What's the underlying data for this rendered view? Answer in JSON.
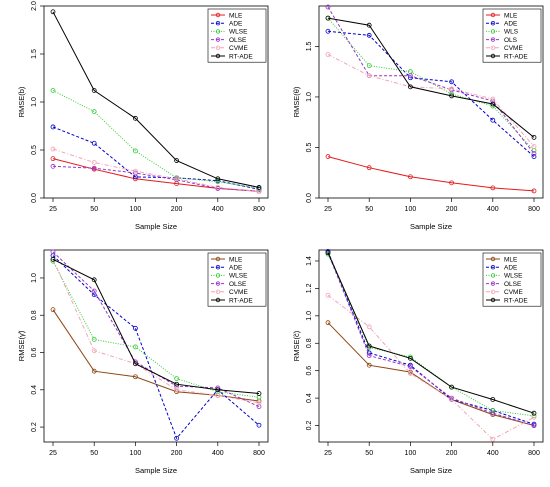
{
  "chart_data": [
    {
      "type": "line",
      "xlabel": "Sample Size",
      "ylabel": "RMSE(b)",
      "x": [
        "25",
        "50",
        "100",
        "200",
        "400",
        "800"
      ],
      "ylim": [
        0,
        2.0
      ],
      "yticks": [
        0.0,
        0.5,
        1.0,
        1.5,
        2.0
      ],
      "ytick_labels": [
        "0.0",
        "0.5",
        "1.0",
        "1.5",
        "2.0"
      ],
      "legend_position": "top-right",
      "series": [
        {
          "name": "MLE",
          "color": "#e41a1c",
          "dash": "solid",
          "values": [
            0.41,
            0.3,
            0.2,
            0.15,
            0.1,
            0.07
          ]
        },
        {
          "name": "ADE",
          "color": "#0000cd",
          "dash": "dashed",
          "values": [
            0.74,
            0.57,
            0.22,
            0.21,
            0.18,
            0.09
          ]
        },
        {
          "name": "WLSE",
          "color": "#33cc33",
          "dash": "dotted",
          "values": [
            1.12,
            0.9,
            0.49,
            0.21,
            0.17,
            0.1
          ]
        },
        {
          "name": "OLSE",
          "color": "#9933cc",
          "dash": "dashed",
          "values": [
            0.33,
            0.31,
            0.26,
            0.19,
            0.1,
            0.07
          ]
        },
        {
          "name": "CVME",
          "color": "#f4a3b4",
          "dash": "dotdash",
          "values": [
            0.51,
            0.37,
            0.28,
            0.2,
            0.11,
            0.07
          ]
        },
        {
          "name": "RT-ADE",
          "color": "#000000",
          "dash": "solid",
          "values": [
            1.94,
            1.12,
            0.83,
            0.39,
            0.2,
            0.11
          ]
        }
      ]
    },
    {
      "type": "line",
      "xlabel": "Sample Size",
      "ylabel": "RMSE(θ)",
      "x": [
        "25",
        "50",
        "100",
        "200",
        "400",
        "800"
      ],
      "ylim": [
        0,
        1.9
      ],
      "yticks": [
        0.0,
        0.5,
        1.0,
        1.5
      ],
      "ytick_labels": [
        "0.0",
        "0.5",
        "1.0",
        "1.5"
      ],
      "legend_position": "top-right",
      "series": [
        {
          "name": "MLE",
          "color": "#e41a1c",
          "dash": "solid",
          "values": [
            0.41,
            0.3,
            0.21,
            0.15,
            0.1,
            0.07
          ]
        },
        {
          "name": "ADE",
          "color": "#0000cd",
          "dash": "dashed",
          "values": [
            1.65,
            1.61,
            1.19,
            1.15,
            0.77,
            0.41
          ]
        },
        {
          "name": "WLS",
          "color": "#33cc33",
          "dash": "dotted",
          "values": [
            1.78,
            1.31,
            1.25,
            1.03,
            0.91,
            0.47
          ]
        },
        {
          "name": "OLS",
          "color": "#9933cc",
          "dash": "dashed",
          "values": [
            1.89,
            1.21,
            1.21,
            1.07,
            0.96,
            0.44
          ]
        },
        {
          "name": "CVME",
          "color": "#f4a3b4",
          "dash": "dotdash",
          "values": [
            1.42,
            1.21,
            1.1,
            1.08,
            0.98,
            0.51
          ]
        },
        {
          "name": "RT-ADE",
          "color": "#000000",
          "dash": "solid",
          "values": [
            1.78,
            1.71,
            1.1,
            1.01,
            0.93,
            0.6
          ]
        }
      ]
    },
    {
      "type": "line",
      "xlabel": "Sample Size",
      "ylabel": "RMSE(γ̃)",
      "x": [
        "25",
        "50",
        "100",
        "200",
        "400",
        "800"
      ],
      "ylim": [
        0.12,
        1.15
      ],
      "yticks": [
        0.2,
        0.4,
        0.6,
        0.8,
        1.0
      ],
      "ytick_labels": [
        "0.2",
        "0.4",
        "0.6",
        "0.8",
        "1.0"
      ],
      "legend_position": "top-right",
      "series": [
        {
          "name": "MLE",
          "color": "#8b4513",
          "dash": "solid",
          "values": [
            0.83,
            0.5,
            0.47,
            0.39,
            0.37,
            0.34
          ]
        },
        {
          "name": "ADE",
          "color": "#0000cd",
          "dash": "dashed",
          "values": [
            1.12,
            0.91,
            0.73,
            0.14,
            0.4,
            0.21
          ]
        },
        {
          "name": "WLSE",
          "color": "#33cc33",
          "dash": "dotted",
          "values": [
            1.09,
            0.67,
            0.63,
            0.46,
            0.39,
            0.36
          ]
        },
        {
          "name": "OLSE",
          "color": "#9933cc",
          "dash": "dashed",
          "values": [
            1.14,
            0.93,
            0.55,
            0.42,
            0.41,
            0.31
          ]
        },
        {
          "name": "CVME",
          "color": "#f4a3b4",
          "dash": "dotdash",
          "values": [
            1.1,
            0.61,
            0.54,
            0.4,
            0.37,
            0.33
          ]
        },
        {
          "name": "RT-ADE",
          "color": "#000000",
          "dash": "solid",
          "values": [
            1.1,
            0.99,
            0.54,
            0.43,
            0.4,
            0.38
          ]
        }
      ]
    },
    {
      "type": "line",
      "xlabel": "Sample Size",
      "ylabel": "RMSE(c̃)",
      "x": [
        "25",
        "50",
        "100",
        "200",
        "400",
        "800"
      ],
      "ylim": [
        0.08,
        1.48
      ],
      "yticks": [
        0.2,
        0.4,
        0.6,
        0.8,
        1.0,
        1.2,
        1.4
      ],
      "ytick_labels": [
        "0.2",
        "0.4",
        "0.6",
        "0.8",
        "1.0",
        "1.2",
        "1.4"
      ],
      "legend_position": "top-right",
      "series": [
        {
          "name": "MLE",
          "color": "#8b4513",
          "dash": "solid",
          "values": [
            0.95,
            0.64,
            0.59,
            0.39,
            0.28,
            0.2
          ]
        },
        {
          "name": "ADE",
          "color": "#0000cd",
          "dash": "dashed",
          "values": [
            1.47,
            0.73,
            0.64,
            0.39,
            0.31,
            0.21
          ]
        },
        {
          "name": "WLSE",
          "color": "#33cc33",
          "dash": "dotted",
          "values": [
            1.45,
            0.77,
            0.7,
            0.48,
            0.31,
            0.27
          ]
        },
        {
          "name": "OLSE",
          "color": "#9933cc",
          "dash": "dashed",
          "values": [
            1.46,
            0.71,
            0.63,
            0.4,
            0.29,
            0.2
          ]
        },
        {
          "name": "CVME",
          "color": "#f4a3b4",
          "dash": "dotdash",
          "values": [
            1.15,
            0.92,
            0.58,
            0.39,
            0.1,
            0.26
          ]
        },
        {
          "name": "RT-ADE",
          "color": "#000000",
          "dash": "solid",
          "values": [
            1.46,
            0.78,
            0.69,
            0.48,
            0.39,
            0.29
          ]
        }
      ]
    }
  ]
}
